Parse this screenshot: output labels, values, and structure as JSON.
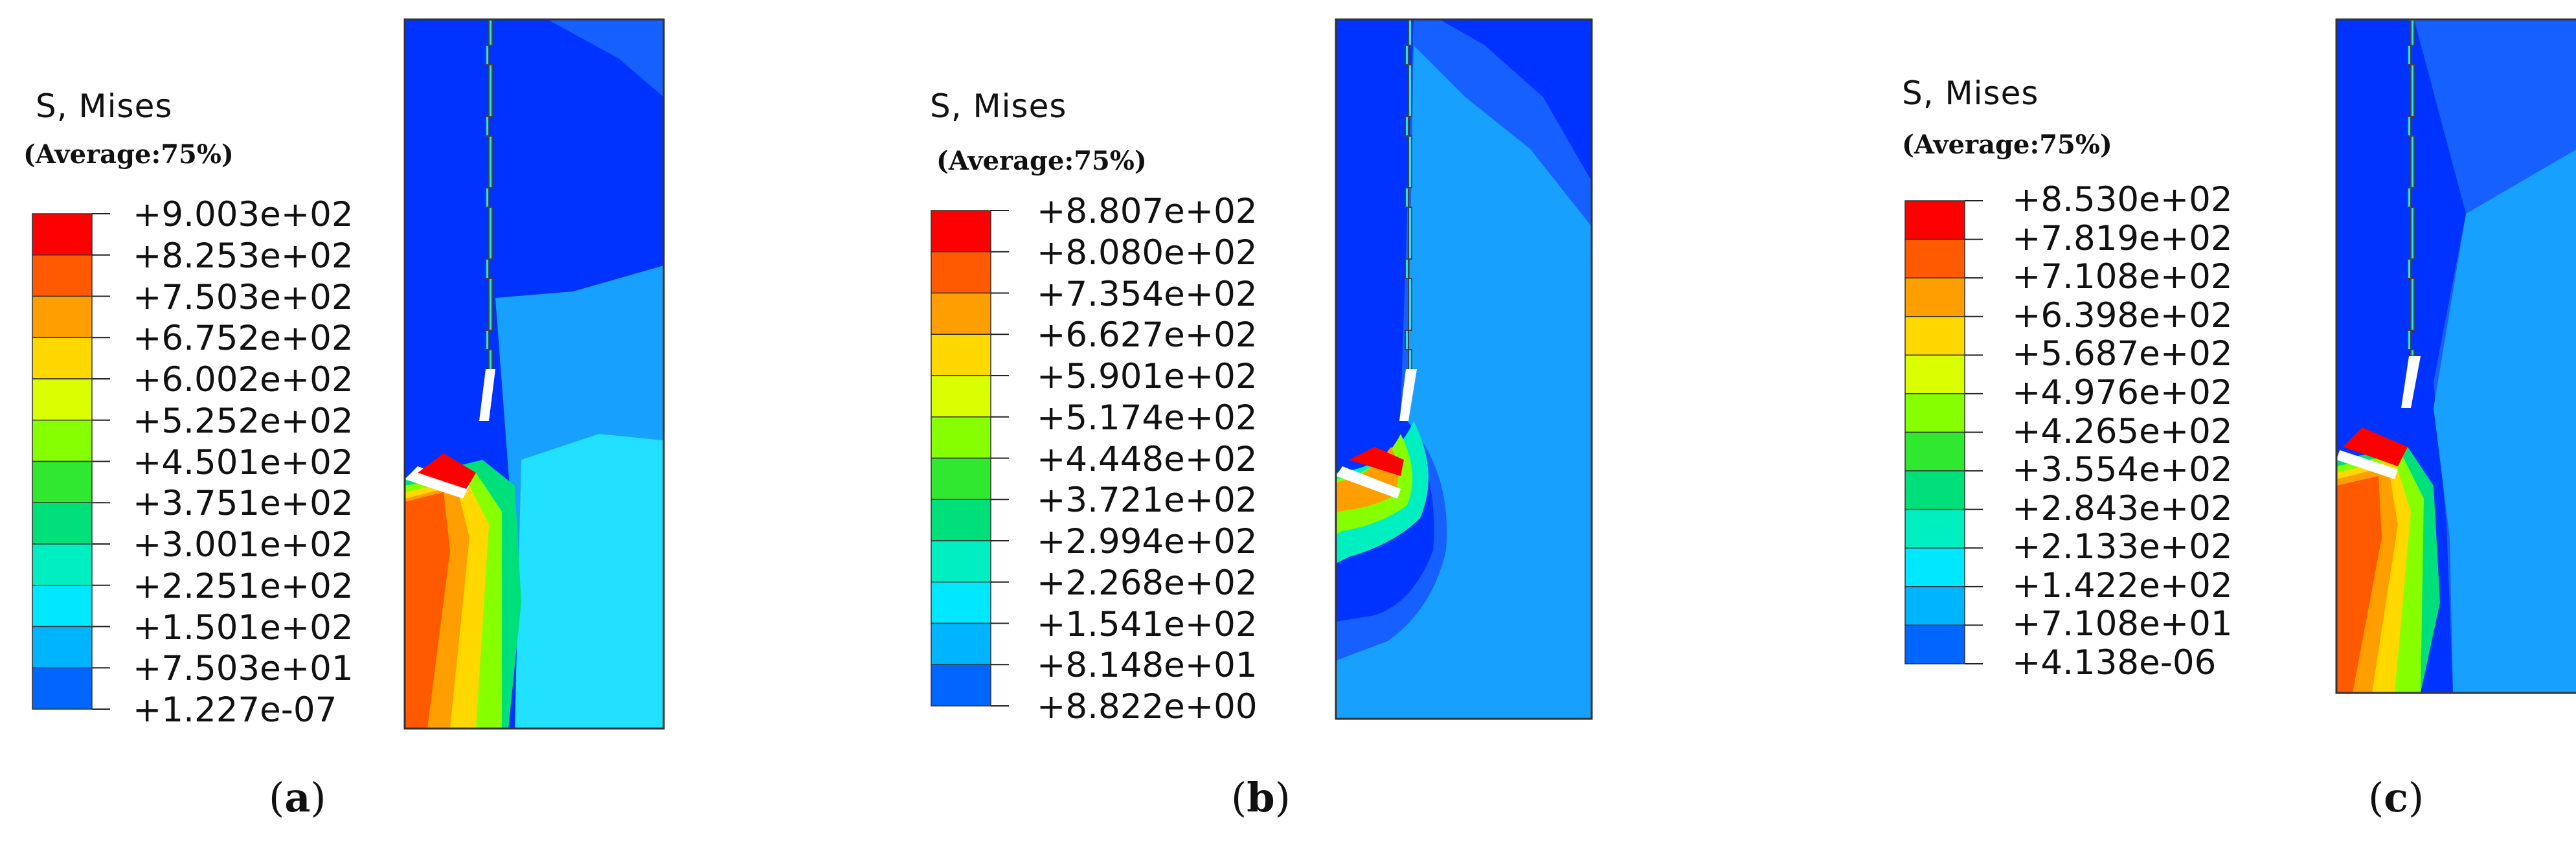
{
  "panels": [
    {
      "legend_title": "S, Mises",
      "legend_subtitle": "(Average:75%)",
      "levels": [
        "+9.003e+02",
        "+8.253e+02",
        "+7.503e+02",
        "+6.752e+02",
        "+6.002e+02",
        "+5.252e+02",
        "+4.501e+02",
        "+3.751e+02",
        "+3.001e+02",
        "+2.251e+02",
        "+1.501e+02",
        "+7.503e+01",
        "+1.227e-07"
      ],
      "caption_letter": "a"
    },
    {
      "legend_title": "S, Mises",
      "legend_subtitle": "(Average:75%)",
      "levels": [
        "+8.807e+02",
        "+8.080e+02",
        "+7.354e+02",
        "+6.627e+02",
        "+5.901e+02",
        "+5.174e+02",
        "+4.448e+02",
        "+3.721e+02",
        "+2.994e+02",
        "+2.268e+02",
        "+1.541e+02",
        "+8.148e+01",
        "+8.822e+00"
      ],
      "caption_letter": "b"
    },
    {
      "legend_title": "S, Mises",
      "legend_subtitle": "(Average:75%)",
      "levels": [
        "+8.530e+02",
        "+7.819e+02",
        "+7.108e+02",
        "+6.398e+02",
        "+5.687e+02",
        "+4.976e+02",
        "+4.265e+02",
        "+3.554e+02",
        "+2.843e+02",
        "+2.133e+02",
        "+1.422e+02",
        "+7.108e+01",
        "+4.138e-06"
      ],
      "caption_letter": "c"
    }
  ],
  "colors": {
    "scale": [
      "#ff0000",
      "#ff5a00",
      "#ff9e00",
      "#ffd800",
      "#d9ff00",
      "#86ff00",
      "#2fe82f",
      "#00e07a",
      "#00efc0",
      "#00e8ff",
      "#00b4ff",
      "#0066ff",
      "#0000ff"
    ],
    "background": "#0033ff",
    "low_field": "#18a0ff",
    "mid_field": "#22e0ff"
  }
}
